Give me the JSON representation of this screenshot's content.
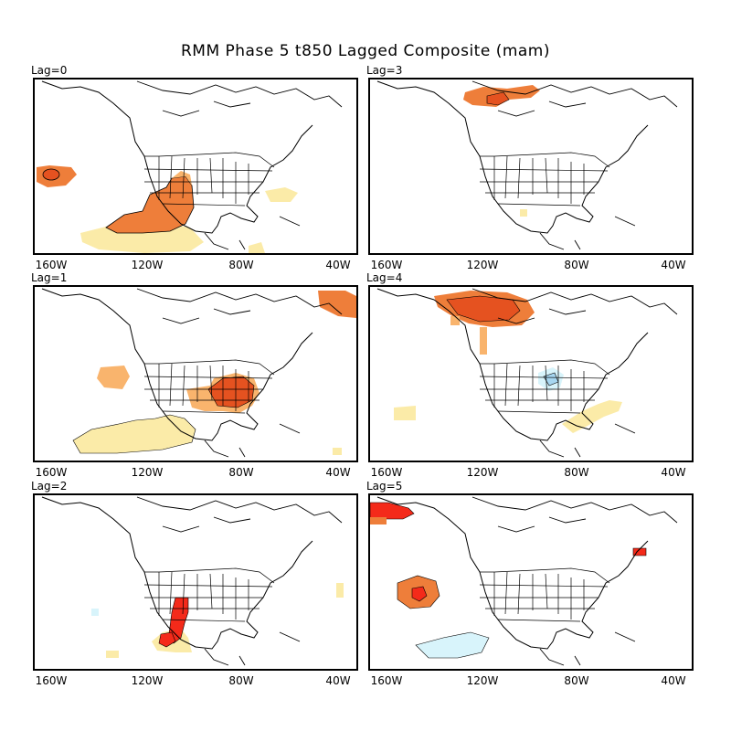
{
  "title": "RMM Phase 5 t850 Lagged Composite (mam)",
  "longitude_ticks": [
    "160W",
    "120W",
    "80W",
    "40W"
  ],
  "colors": {
    "warm_light": "#fbeba8",
    "warm_mid": "#f9b46d",
    "warm_strong": "#ee7e3a",
    "warm_deep": "#e55220",
    "hot": "#f42a1a",
    "cool_light": "#d8f4fb",
    "cool_mid": "#a6d6f0",
    "outline": "#000000"
  },
  "panels": [
    {
      "label": "Lag=0"
    },
    {
      "label": "Lag=3"
    },
    {
      "label": "Lag=1"
    },
    {
      "label": "Lag=4"
    },
    {
      "label": "Lag=2"
    },
    {
      "label": "Lag=5"
    }
  ]
}
